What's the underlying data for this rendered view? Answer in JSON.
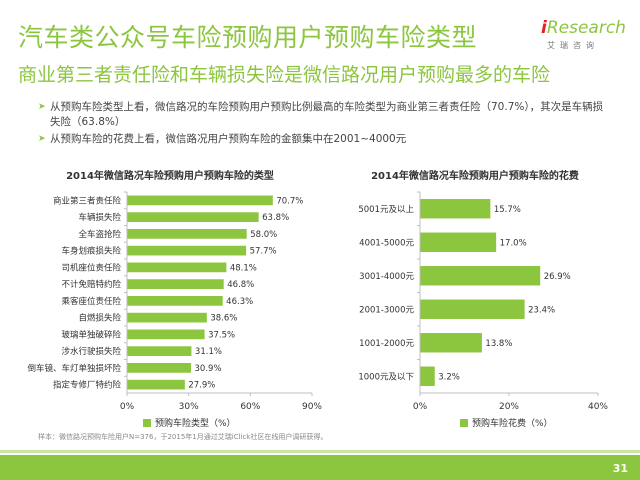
{
  "header": {
    "title": "汽车类公众号车险预购用户预购车险类型",
    "subtitle": "商业第三者责任险和车辆损失险是微信路况用户预购最多的车险"
  },
  "logo": {
    "prefix": "i",
    "main": "Research",
    "sub": "艾瑞咨询"
  },
  "bullets": [
    "从预购车险类型上看，微信路况的车险预购用户预购比例最高的车险类型为商业第三者责任险（70.7%），其次是车辆损失险（63.8%）",
    "从预购车险的花费上看，微信路况用户预购车险的金额集中在2001~4000元"
  ],
  "note": "样本：微信路况预购车险用户N=376，于2015年1月通过艾瑞iClick社区在线用户调研获得。",
  "page_number": "31",
  "colors": {
    "accent": "#8cc63f",
    "bar": "#8cc63f",
    "axis": "#bfbfbf"
  },
  "chart_data": [
    {
      "type": "bar",
      "orientation": "horizontal",
      "title": "2014年微信路况车险预购用户预购车险的类型",
      "categories": [
        "商业第三者责任险",
        "车辆损失险",
        "全车盗抢险",
        "车身划痕损失险",
        "司机座位责任险",
        "不计免赔特约险",
        "乘客座位责任险",
        "自燃损失险",
        "玻璃单独破碎险",
        "涉水行驶损失险",
        "倒车镜、车灯单独损坏险",
        "指定专修厂特约险"
      ],
      "series": [
        {
          "name": "预购车险类型（%）",
          "values": [
            70.7,
            63.8,
            58.0,
            57.7,
            48.1,
            46.8,
            46.3,
            38.6,
            37.5,
            31.1,
            30.9,
            27.9
          ]
        }
      ],
      "value_labels": [
        "70.7%",
        "63.8%",
        "58.0%",
        "57.7%",
        "48.1%",
        "46.8%",
        "46.3%",
        "38.6%",
        "37.5%",
        "31.1%",
        "30.9%",
        "27.9%"
      ],
      "xlim": [
        0,
        90
      ],
      "ticks": [
        0,
        30,
        60,
        90
      ],
      "tick_labels": [
        "0%",
        "30%",
        "60%",
        "90%"
      ],
      "legend": "bottom"
    },
    {
      "type": "bar",
      "orientation": "horizontal",
      "title": "2014年微信路况车险预购用户预购车险的花费",
      "categories": [
        "5001元及以上",
        "4001-5000元",
        "3001-4000元",
        "2001-3000元",
        "1001-2000元",
        "1000元及以下"
      ],
      "series": [
        {
          "name": "预购车险花费（%）",
          "values": [
            15.7,
            17.0,
            26.9,
            23.4,
            13.8,
            3.2
          ]
        }
      ],
      "value_labels": [
        "15.7%",
        "17.0%",
        "26.9%",
        "23.4%",
        "13.8%",
        "3.2%"
      ],
      "xlim": [
        0,
        40
      ],
      "ticks": [
        0,
        20,
        40
      ],
      "tick_labels": [
        "0%",
        "20%",
        "40%"
      ],
      "legend": "bottom"
    }
  ]
}
